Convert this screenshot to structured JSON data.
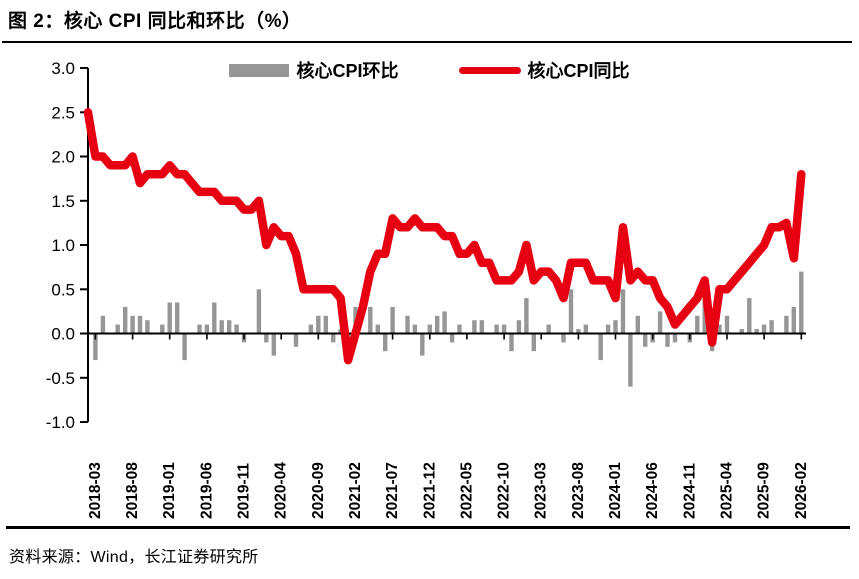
{
  "page": {
    "title": "图 2：核心 CPI 同比和环比（%）",
    "source": "资料来源：Wind，长江证券研究所"
  },
  "legend": {
    "items": [
      {
        "label": "核心CPI环比",
        "swatch": "bar",
        "color": "#969696"
      },
      {
        "label": "核心CPI同比",
        "swatch": "line",
        "color": "#e60012"
      }
    ]
  },
  "chart_data": {
    "type": "bar+line",
    "title": "图 2：核心 CPI 同比和环比（%）",
    "xlabel": "",
    "ylabel": "",
    "unit": "%",
    "grid": false,
    "legend_position": "top-center",
    "ylim": [
      -1.0,
      3.0
    ],
    "yticks": [
      3.0,
      2.5,
      2.0,
      1.5,
      1.0,
      0.5,
      0.0,
      -0.5,
      -1.0
    ],
    "x_monthly": [
      "2018-02",
      "2018-03",
      "2018-04",
      "2018-05",
      "2018-06",
      "2018-07",
      "2018-08",
      "2018-09",
      "2018-10",
      "2018-11",
      "2018-12",
      "2019-01",
      "2019-02",
      "2019-03",
      "2019-04",
      "2019-05",
      "2019-06",
      "2019-07",
      "2019-08",
      "2019-09",
      "2019-10",
      "2019-11",
      "2019-12",
      "2020-01",
      "2020-02",
      "2020-03",
      "2020-04",
      "2020-05",
      "2020-06",
      "2020-07",
      "2020-08",
      "2020-09",
      "2020-10",
      "2020-11",
      "2020-12",
      "2021-01",
      "2021-02",
      "2021-03",
      "2021-04",
      "2021-05",
      "2021-06",
      "2021-07",
      "2021-08",
      "2021-09",
      "2021-10",
      "2021-11",
      "2021-12",
      "2022-01",
      "2022-02",
      "2022-03",
      "2022-04",
      "2022-05",
      "2022-06",
      "2022-07",
      "2022-08",
      "2022-09",
      "2022-10",
      "2022-11",
      "2022-12",
      "2023-01",
      "2023-02",
      "2023-03",
      "2023-04",
      "2023-05",
      "2023-06",
      "2023-07",
      "2023-08",
      "2023-09",
      "2023-10",
      "2023-11",
      "2023-12",
      "2024-01",
      "2024-02",
      "2024-03",
      "2024-04",
      "2024-05",
      "2024-06",
      "2024-07",
      "2024-08",
      "2024-09",
      "2024-10",
      "2024-11",
      "2024-12",
      "2025-01",
      "2025-02",
      "2025-03",
      "2025-04",
      "2025-05",
      "2025-06",
      "2025-07",
      "2025-08",
      "2025-09",
      "2025-10",
      "2025-11",
      "2025-12",
      "2026-01",
      "2026-02"
    ],
    "xticks": [
      {
        "i": 1,
        "label": "2018-03"
      },
      {
        "i": 6,
        "label": "2018-08"
      },
      {
        "i": 11,
        "label": "2019-01"
      },
      {
        "i": 16,
        "label": "2019-06"
      },
      {
        "i": 21,
        "label": "2019-11"
      },
      {
        "i": 26,
        "label": "2020-04"
      },
      {
        "i": 31,
        "label": "2020-09"
      },
      {
        "i": 36,
        "label": "2021-02"
      },
      {
        "i": 41,
        "label": "2021-07"
      },
      {
        "i": 46,
        "label": "2021-12"
      },
      {
        "i": 51,
        "label": "2022-05"
      },
      {
        "i": 56,
        "label": "2022-10"
      },
      {
        "i": 61,
        "label": "2023-03"
      },
      {
        "i": 66,
        "label": "2023-08"
      },
      {
        "i": 71,
        "label": "2024-01"
      },
      {
        "i": 76,
        "label": "2024-06"
      },
      {
        "i": 81,
        "label": "2024-11"
      },
      {
        "i": 86,
        "label": "2025-04"
      },
      {
        "i": 91,
        "label": "2025-09"
      },
      {
        "i": 96,
        "label": "2026-02"
      }
    ],
    "series": [
      {
        "name": "核心CPI环比",
        "type": "bar",
        "color": "#969696",
        "values": [
          0,
          -0.3,
          0.2,
          0,
          0.1,
          0.3,
          0.2,
          0.2,
          0.15,
          0,
          0.1,
          0.35,
          0.35,
          -0.3,
          0,
          0.1,
          0.1,
          0.35,
          0.15,
          0.15,
          0.1,
          -0.1,
          0,
          0.5,
          -0.1,
          -0.25,
          0,
          0,
          -0.15,
          0,
          0.1,
          0.2,
          0.2,
          -0.1,
          0.05,
          -0.1,
          0.3,
          0,
          0.3,
          0.1,
          -0.2,
          0.3,
          0,
          0.2,
          0.1,
          -0.25,
          0.1,
          0.2,
          0.25,
          -0.1,
          0.1,
          0,
          0.15,
          0.15,
          0,
          0.1,
          0.1,
          -0.2,
          0.15,
          0.4,
          -0.2,
          0,
          0.1,
          0,
          -0.1,
          0.5,
          0.05,
          0.1,
          0,
          -0.3,
          0.1,
          0.15,
          0.5,
          -0.6,
          0.2,
          -0.15,
          -0.1,
          0.25,
          -0.15,
          -0.1,
          0,
          -0.1,
          0.2,
          0.5,
          -0.2,
          0.1,
          0.2,
          0,
          0.05,
          0.4,
          0.05,
          0.1,
          0.15,
          0,
          0.2,
          0.3,
          0.7
        ]
      },
      {
        "name": "核心CPI同比",
        "type": "line",
        "color": "#e60012",
        "values": [
          2.5,
          2.0,
          2.0,
          1.9,
          1.9,
          1.9,
          2.0,
          1.7,
          1.8,
          1.8,
          1.8,
          1.9,
          1.8,
          1.8,
          1.7,
          1.6,
          1.6,
          1.6,
          1.5,
          1.5,
          1.5,
          1.4,
          1.4,
          1.5,
          1.0,
          1.2,
          1.1,
          1.1,
          0.9,
          0.5,
          0.5,
          0.5,
          0.5,
          0.5,
          0.4,
          -0.3,
          0.0,
          0.3,
          0.7,
          0.9,
          0.9,
          1.3,
          1.2,
          1.2,
          1.3,
          1.2,
          1.2,
          1.2,
          1.1,
          1.1,
          0.9,
          0.9,
          1.0,
          0.8,
          0.8,
          0.6,
          0.6,
          0.6,
          0.7,
          1.0,
          0.6,
          0.7,
          0.7,
          0.6,
          0.4,
          0.8,
          0.8,
          0.8,
          0.6,
          0.6,
          0.6,
          0.4,
          1.2,
          0.6,
          0.7,
          0.6,
          0.6,
          0.4,
          0.3,
          0.1,
          0.2,
          0.3,
          0.4,
          0.6,
          -0.1,
          0.5,
          0.5,
          0.6,
          0.7,
          0.8,
          0.9,
          1.0,
          1.2,
          1.2,
          1.25,
          0.85,
          1.8
        ]
      }
    ]
  }
}
